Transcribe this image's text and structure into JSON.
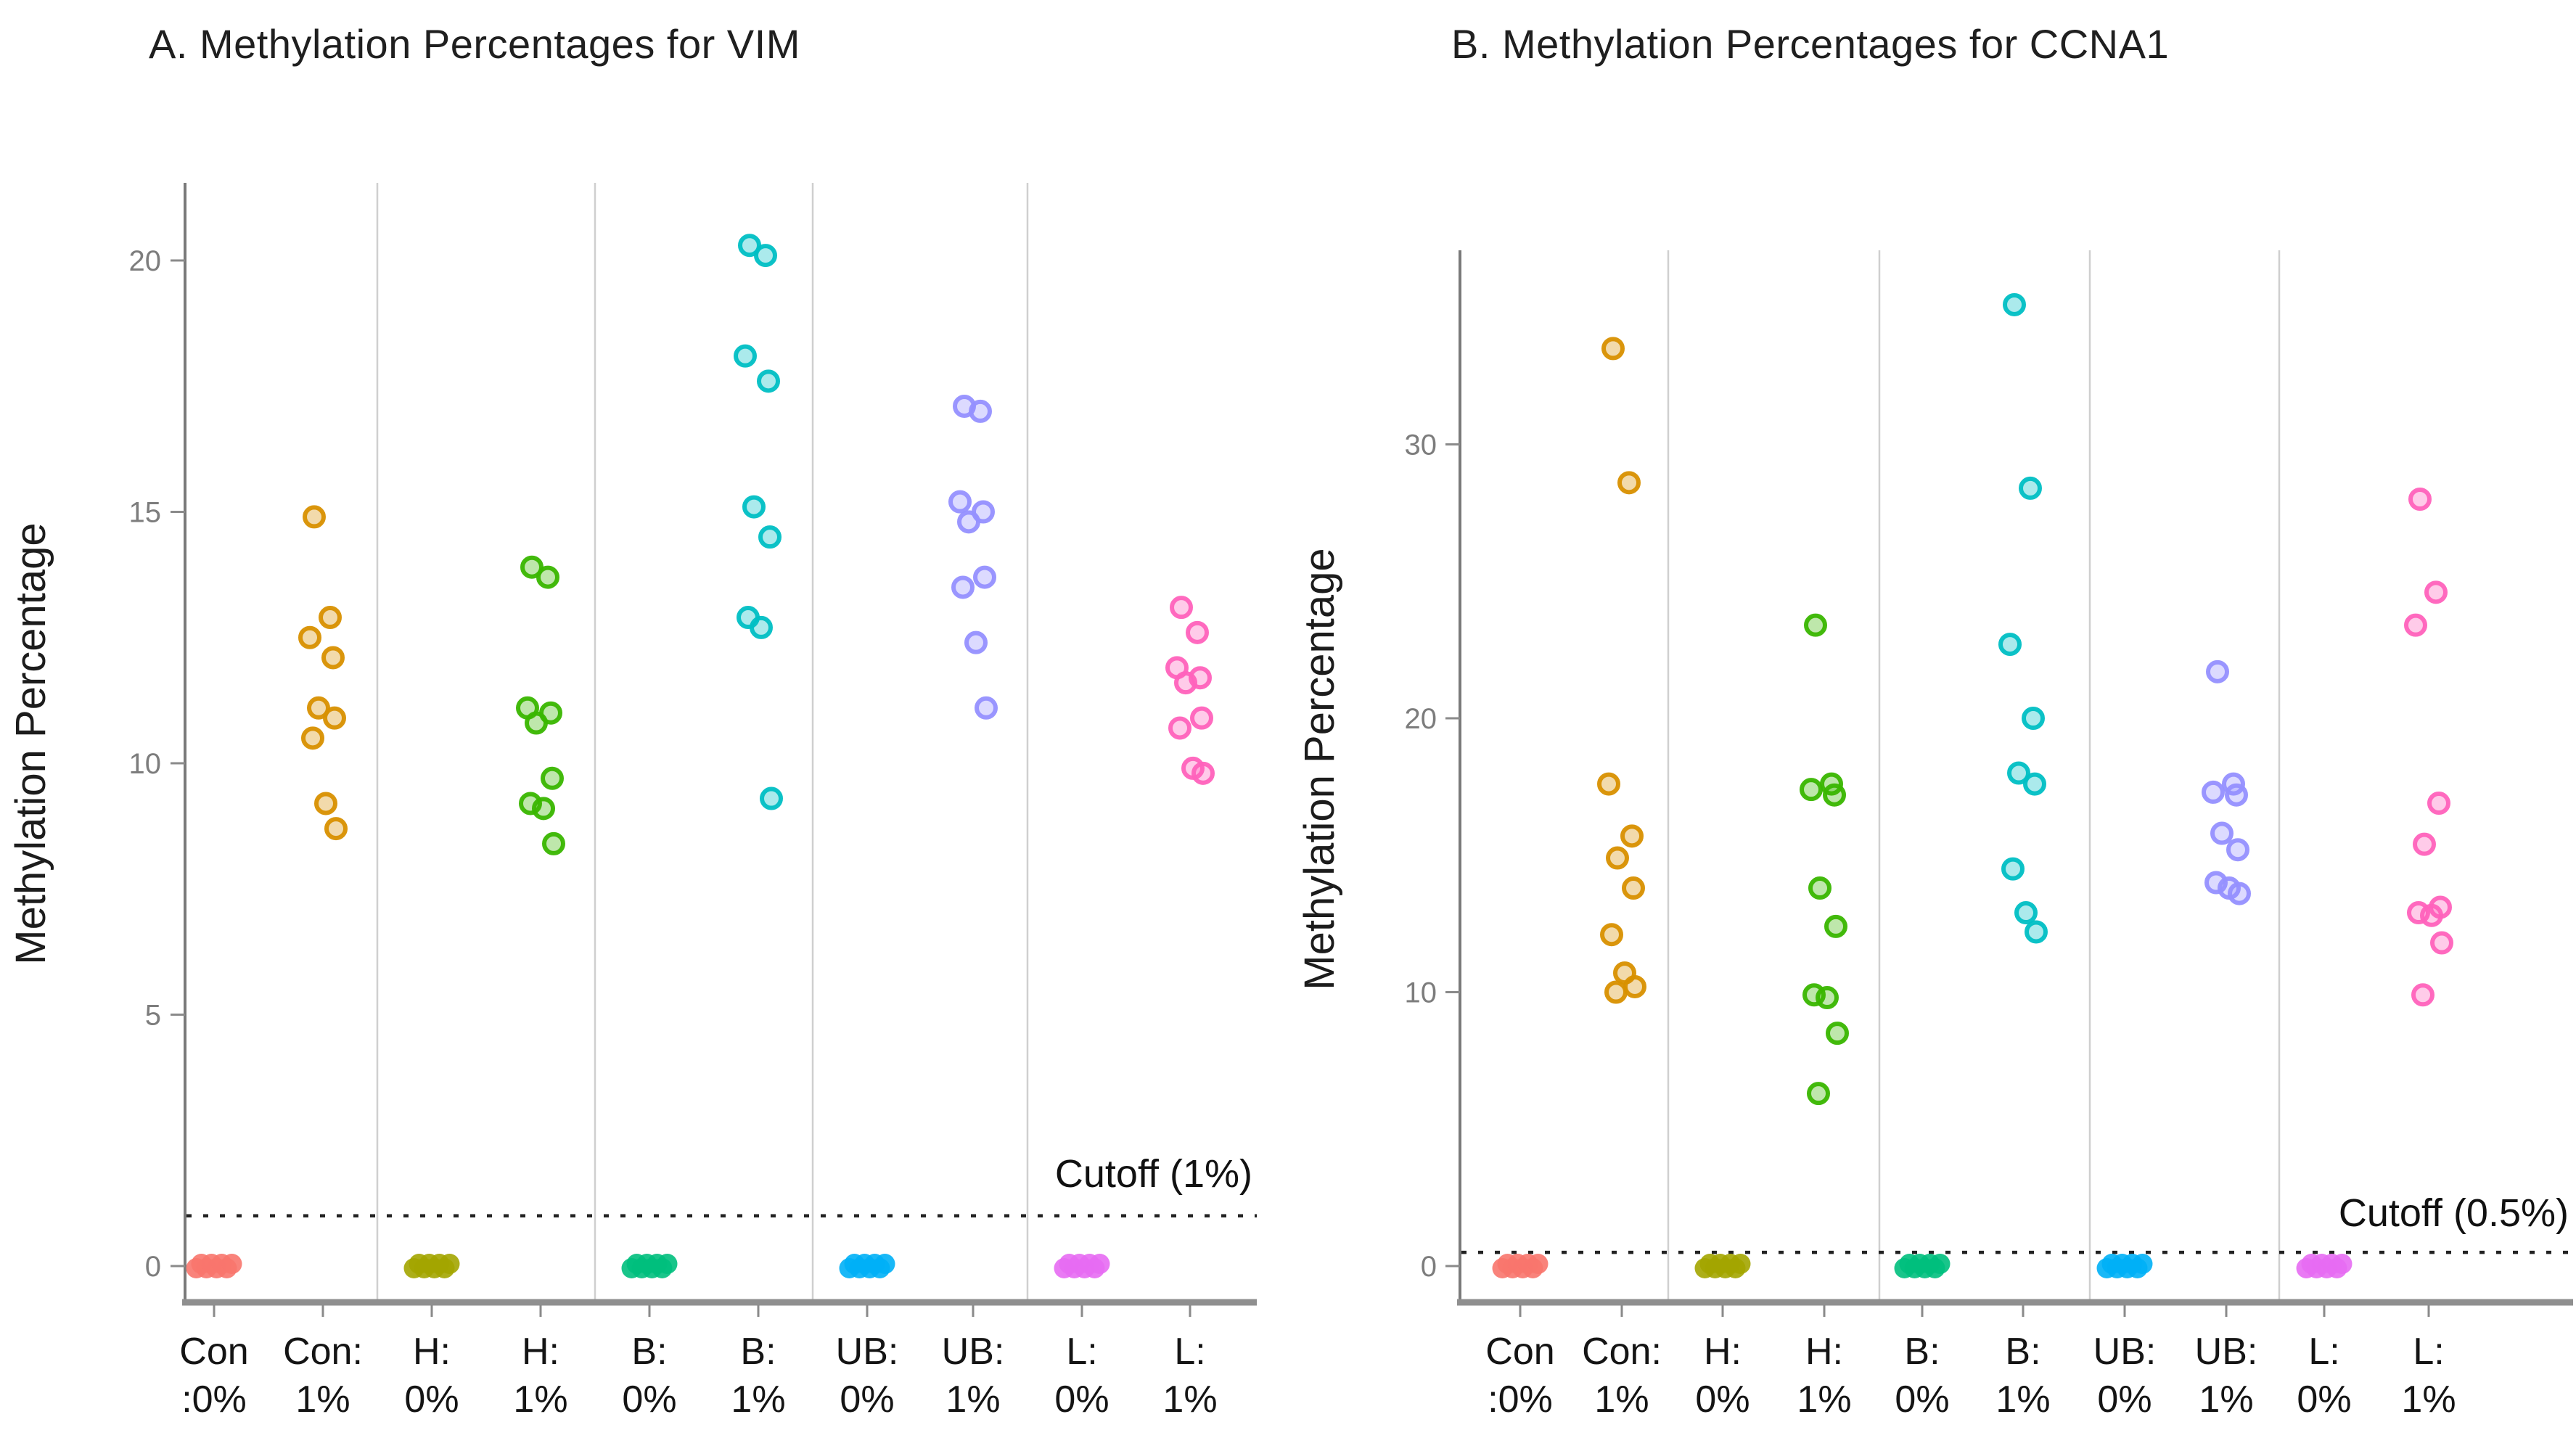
{
  "figure_background": "#ffffff",
  "chart_data": [
    {
      "type": "scatter",
      "panel": "A",
      "title": "A. Methylation Percentages for VIM",
      "ylabel": "Methylation Percentage",
      "xlabel": "",
      "ylim": [
        -1.2,
        21.5
      ],
      "yticks": [
        0,
        5,
        10,
        15,
        20
      ],
      "grid": false,
      "legend": "none",
      "cutoff_value": 1,
      "cutoff_label": "Cutoff (1%)",
      "groups": [
        {
          "label_line1": "Con",
          "label_line2": ":0%",
          "color": "#F8766D",
          "values": [
            0,
            0,
            0,
            0,
            0,
            0,
            0,
            0
          ]
        },
        {
          "label_line1": "Con:",
          "label_line2": "1%",
          "color": "#D89000",
          "values": [
            14.9,
            12.9,
            12.5,
            12.1,
            11.1,
            10.9,
            10.5,
            9.2,
            8.7
          ]
        },
        {
          "label_line1": "H:",
          "label_line2": "0%",
          "color": "#A3A500",
          "values": [
            0,
            0,
            0,
            0,
            0,
            0,
            0,
            0
          ]
        },
        {
          "label_line1": "H:",
          "label_line2": "1%",
          "color": "#39B600",
          "values": [
            13.9,
            13.7,
            11.1,
            11.0,
            10.8,
            9.7,
            9.2,
            9.1,
            8.4
          ]
        },
        {
          "label_line1": "B:",
          "label_line2": "0%",
          "color": "#00BF7D",
          "values": [
            0,
            0,
            0,
            0,
            0,
            0,
            0,
            0
          ]
        },
        {
          "label_line1": "B:",
          "label_line2": "1%",
          "color": "#00BFC4",
          "values": [
            20.3,
            20.1,
            18.1,
            17.6,
            15.1,
            14.5,
            12.9,
            12.7,
            9.3
          ]
        },
        {
          "label_line1": "UB:",
          "label_line2": "0%",
          "color": "#00B0F6",
          "values": [
            0,
            0,
            0,
            0,
            0,
            0,
            0,
            0
          ]
        },
        {
          "label_line1": "UB:",
          "label_line2": "1%",
          "color": "#9590FF",
          "values": [
            17.1,
            17.0,
            15.2,
            15.0,
            14.8,
            13.7,
            13.5,
            12.4,
            11.1
          ]
        },
        {
          "label_line1": "L:",
          "label_line2": "0%",
          "color": "#E76BF3",
          "values": [
            0,
            0,
            0,
            0,
            0,
            0,
            0,
            0
          ]
        },
        {
          "label_line1": "L:",
          "label_line2": "1%",
          "color": "#FF62BC",
          "values": [
            13.1,
            12.6,
            11.9,
            11.7,
            11.6,
            10.9,
            10.7,
            9.9,
            9.8
          ]
        }
      ]
    },
    {
      "type": "scatter",
      "panel": "B",
      "title": "B. Methylation Percentages for CCNA1",
      "ylabel": "Methylation Percentage",
      "xlabel": "",
      "ylim": [
        -2,
        37
      ],
      "yticks": [
        0,
        10,
        20,
        30
      ],
      "grid": false,
      "legend": "none",
      "cutoff_value": 0.5,
      "cutoff_label": "Cutoff (0.5%)",
      "groups": [
        {
          "label_line1": "Con",
          "label_line2": ":0%",
          "color": "#F8766D",
          "values": [
            0,
            0,
            0,
            0,
            0,
            0,
            0,
            0
          ]
        },
        {
          "label_line1": "Con:",
          "label_line2": "1%",
          "color": "#D89000",
          "values": [
            33.5,
            28.6,
            17.6,
            15.7,
            14.9,
            13.8,
            12.1,
            10.7,
            10.2,
            10.0
          ]
        },
        {
          "label_line1": "H:",
          "label_line2": "0%",
          "color": "#A3A500",
          "values": [
            0,
            0,
            0,
            0,
            0,
            0,
            0,
            0
          ]
        },
        {
          "label_line1": "H:",
          "label_line2": "1%",
          "color": "#39B600",
          "values": [
            23.4,
            17.6,
            17.4,
            17.2,
            13.8,
            12.4,
            9.9,
            9.8,
            8.5,
            6.3
          ]
        },
        {
          "label_line1": "B:",
          "label_line2": "0%",
          "color": "#00BF7D",
          "values": [
            0,
            0,
            0,
            0,
            0,
            0,
            0,
            0
          ]
        },
        {
          "label_line1": "B:",
          "label_line2": "1%",
          "color": "#00BFC4",
          "values": [
            35.1,
            28.4,
            22.7,
            20.0,
            18.0,
            17.6,
            14.5,
            12.9,
            12.2
          ]
        },
        {
          "label_line1": "UB:",
          "label_line2": "0%",
          "color": "#00B0F6",
          "values": [
            0,
            0,
            0,
            0,
            0,
            0,
            0,
            0
          ]
        },
        {
          "label_line1": "UB:",
          "label_line2": "1%",
          "color": "#9590FF",
          "values": [
            21.7,
            17.6,
            17.3,
            17.2,
            15.8,
            15.2,
            14.0,
            13.8,
            13.6
          ]
        },
        {
          "label_line1": "L:",
          "label_line2": "0%",
          "color": "#E76BF3",
          "values": [
            0,
            0,
            0,
            0,
            0,
            0,
            0,
            0
          ]
        },
        {
          "label_line1": "L:",
          "label_line2": "1%",
          "color": "#FF62BC",
          "values": [
            28.0,
            24.6,
            23.4,
            16.9,
            15.4,
            13.1,
            12.9,
            12.8,
            11.8,
            9.9
          ]
        }
      ]
    }
  ]
}
